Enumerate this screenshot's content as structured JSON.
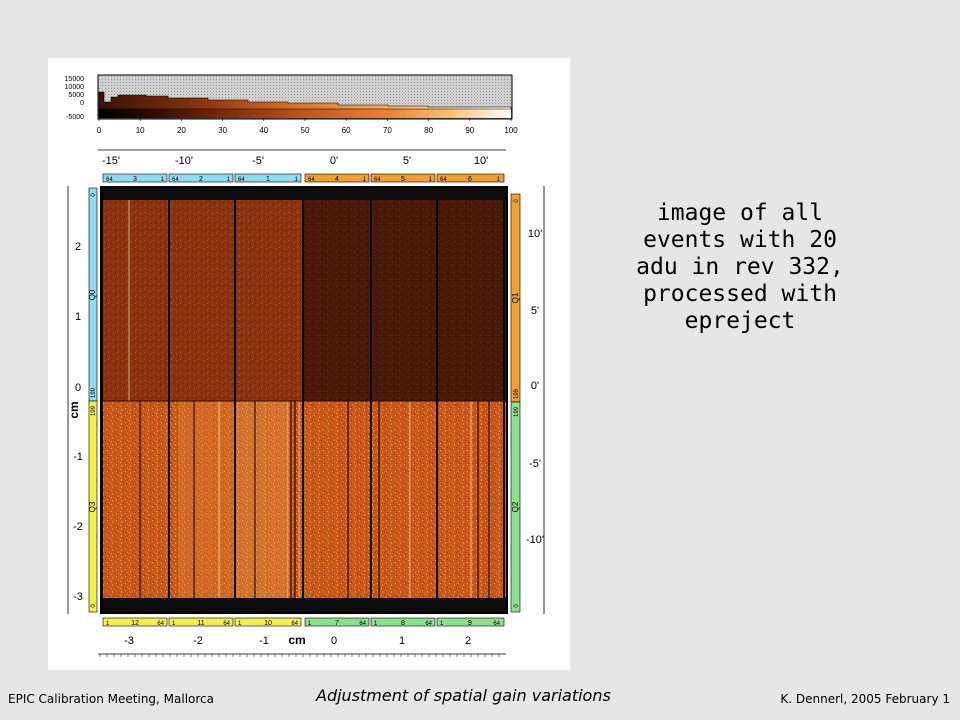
{
  "caption": {
    "line1": "image of all",
    "line2": "events with 20",
    "line3": "adu in rev 332,",
    "line4": "processed with",
    "line5": "epreject"
  },
  "footer": {
    "left": "EPIC Calibration Meeting, Mallorca",
    "center": "Adjustment of spatial gain variations",
    "right": "K. Dennerl, 2005 February 1"
  },
  "figure": {
    "colorbar": {
      "y_ticks": [
        "15000",
        "10000",
        "5000",
        "0",
        "-5000"
      ],
      "x_ticks": [
        "0",
        "10",
        "20",
        "30",
        "40",
        "50",
        "60",
        "70",
        "80",
        "90",
        "100"
      ]
    },
    "top_arcmin_ticks": [
      "-15'",
      "-10'",
      "-5'",
      "0'",
      "5'",
      "10'"
    ],
    "bottom_cm_ticks": [
      "-3",
      "-2",
      "-1",
      "cm",
      "0",
      "1",
      "2"
    ],
    "left_cm_ticks": [
      "2",
      "1",
      "0",
      "cm",
      "-1",
      "-2",
      "-3"
    ],
    "right_arcmin_ticks": [
      "10'",
      "5'",
      "0'",
      "-5'",
      "-10'"
    ],
    "top_ccds": [
      {
        "start": "64",
        "id": "3",
        "end": "1"
      },
      {
        "start": "64",
        "id": "2",
        "end": "1"
      },
      {
        "start": "64",
        "id": "1",
        "end": "1"
      },
      {
        "start": "64",
        "id": "4",
        "end": "1"
      },
      {
        "start": "64",
        "id": "5",
        "end": "1"
      },
      {
        "start": "64",
        "id": "6",
        "end": "1"
      }
    ],
    "bottom_ccds": [
      {
        "start": "1",
        "id": "12",
        "end": "64"
      },
      {
        "start": "1",
        "id": "11",
        "end": "64"
      },
      {
        "start": "1",
        "id": "10",
        "end": "64"
      },
      {
        "start": "1",
        "id": "7",
        "end": "64"
      },
      {
        "start": "1",
        "id": "8",
        "end": "64"
      },
      {
        "start": "1",
        "id": "9",
        "end": "64"
      }
    ],
    "quadrants": {
      "left_upper": {
        "label": "Q0",
        "top": "0",
        "bottom": "199"
      },
      "left_lower": {
        "label": "Q3",
        "top": "199",
        "bottom": "0"
      },
      "right_upper": {
        "label": "Q1",
        "top": "0",
        "bottom": "199"
      },
      "right_lower": {
        "label": "Q2",
        "top": "199",
        "bottom": "0"
      }
    },
    "colors": {
      "cyan": "#8fdcf0",
      "orange": "#f0a030",
      "yellow": "#f2ee4a",
      "green": "#8ee08e",
      "bright_quadrant": "#c9571a",
      "dark_quadrant": "#4a1808"
    }
  }
}
